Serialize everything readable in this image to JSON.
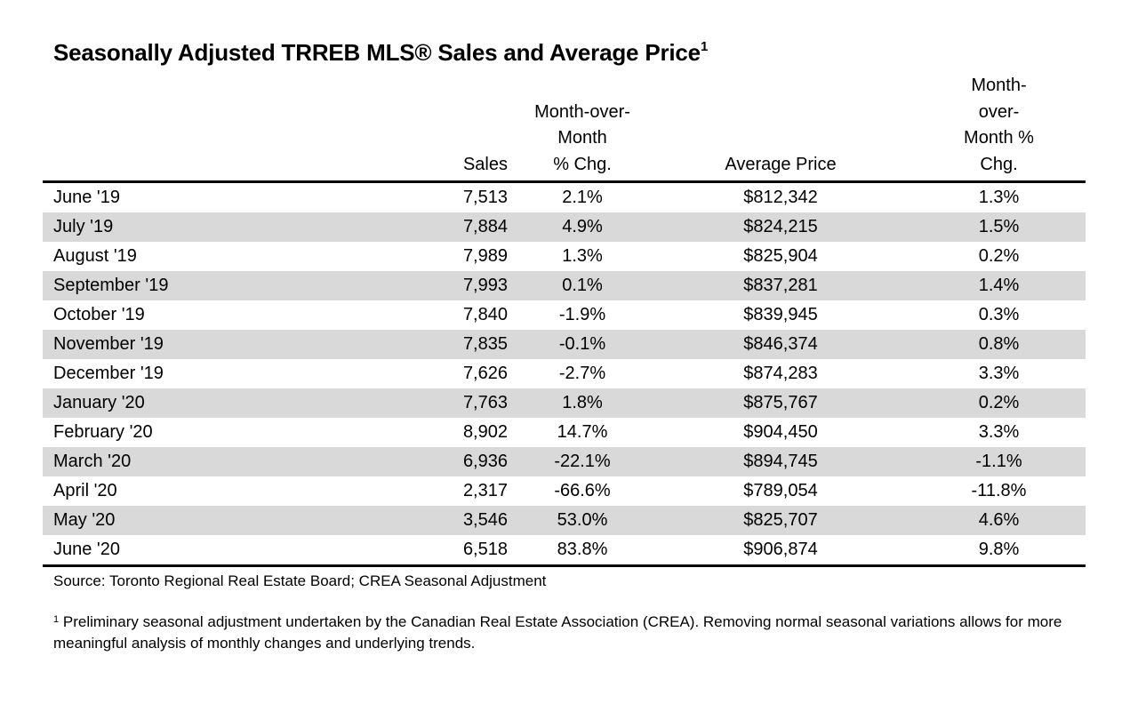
{
  "title": {
    "text": "Seasonally Adjusted TRREB MLS® Sales and Average Price",
    "superscript": "1"
  },
  "table": {
    "headers": {
      "month": "",
      "sales": "Sales",
      "sales_chg_line1": "Month-over-Month",
      "sales_chg_line2": "% Chg.",
      "avg_price": "Average Price",
      "price_chg_line1": "Month-",
      "price_chg_line2": "over-",
      "price_chg_line3": "Month %",
      "price_chg_line4": "Chg."
    },
    "rows": [
      {
        "month": "June '19",
        "sales": "7,513",
        "sales_chg": "2.1%",
        "avg_price": "$812,342",
        "price_chg": "1.3%"
      },
      {
        "month": "July '19",
        "sales": "7,884",
        "sales_chg": "4.9%",
        "avg_price": "$824,215",
        "price_chg": "1.5%"
      },
      {
        "month": "August '19",
        "sales": "7,989",
        "sales_chg": "1.3%",
        "avg_price": "$825,904",
        "price_chg": "0.2%"
      },
      {
        "month": "September '19",
        "sales": "7,993",
        "sales_chg": "0.1%",
        "avg_price": "$837,281",
        "price_chg": "1.4%"
      },
      {
        "month": "October '19",
        "sales": "7,840",
        "sales_chg": "-1.9%",
        "avg_price": "$839,945",
        "price_chg": "0.3%"
      },
      {
        "month": "November '19",
        "sales": "7,835",
        "sales_chg": "-0.1%",
        "avg_price": "$846,374",
        "price_chg": "0.8%"
      },
      {
        "month": "December '19",
        "sales": "7,626",
        "sales_chg": "-2.7%",
        "avg_price": "$874,283",
        "price_chg": "3.3%"
      },
      {
        "month": "January '20",
        "sales": "7,763",
        "sales_chg": "1.8%",
        "avg_price": "$875,767",
        "price_chg": "0.2%"
      },
      {
        "month": "February '20",
        "sales": "8,902",
        "sales_chg": "14.7%",
        "avg_price": "$904,450",
        "price_chg": "3.3%"
      },
      {
        "month": "March '20",
        "sales": "6,936",
        "sales_chg": "-22.1%",
        "avg_price": "$894,745",
        "price_chg": "-1.1%"
      },
      {
        "month": "April '20",
        "sales": "2,317",
        "sales_chg": "-66.6%",
        "avg_price": "$789,054",
        "price_chg": "-11.8%"
      },
      {
        "month": "May '20",
        "sales": "3,546",
        "sales_chg": "53.0%",
        "avg_price": "$825,707",
        "price_chg": "4.6%"
      },
      {
        "month": "June '20",
        "sales": "6,518",
        "sales_chg": "83.8%",
        "avg_price": "$906,874",
        "price_chg": "9.8%"
      }
    ],
    "stripe_color": "#d9d9d9"
  },
  "source": "Source: Toronto Regional Real Estate Board; CREA Seasonal Adjustment",
  "footnote": {
    "marker": "1",
    "text": "Preliminary seasonal adjustment undertaken by the Canadian Real Estate Association (CREA).  Removing normal seasonal variations allows for more meaningful analysis of monthly changes and underlying trends."
  }
}
